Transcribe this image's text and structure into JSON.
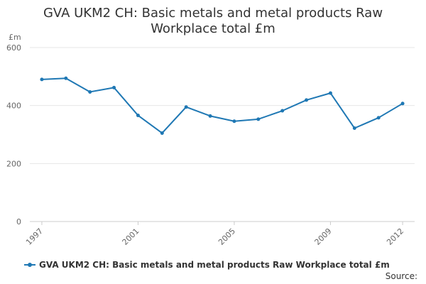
{
  "chart_data": {
    "type": "line",
    "title_lines": [
      "GVA UKM2 CH: Basic metals and metal products Raw",
      "Workplace total £m"
    ],
    "y_unit": "£m",
    "ylim": [
      0,
      600
    ],
    "y_ticks": [
      "0",
      "200",
      "400",
      "600"
    ],
    "x_tick_labels": [
      "1997",
      "2001",
      "2005",
      "2009",
      "2012"
    ],
    "x_tick_years": [
      1997,
      2001,
      2005,
      2009,
      2012
    ],
    "grid": "horizontal",
    "legend_position": "bottom",
    "series": [
      {
        "name": "GVA UKM2 CH: Basic metals and metal products Raw Workplace total £m",
        "color": "#1f78b4",
        "x": [
          1997,
          1998,
          1999,
          2000,
          2001,
          2002,
          2003,
          2004,
          2005,
          2006,
          2007,
          2008,
          2009,
          2010,
          2011,
          2012
        ],
        "values": [
          490,
          494,
          447,
          462,
          366,
          305,
          395,
          364,
          346,
          353,
          382,
          419,
          443,
          322,
          358,
          407
        ]
      }
    ]
  },
  "legend": {
    "label": "GVA UKM2 CH: Basic metals and metal products Raw Workplace total £m"
  },
  "footer": {
    "source": "Source:"
  }
}
